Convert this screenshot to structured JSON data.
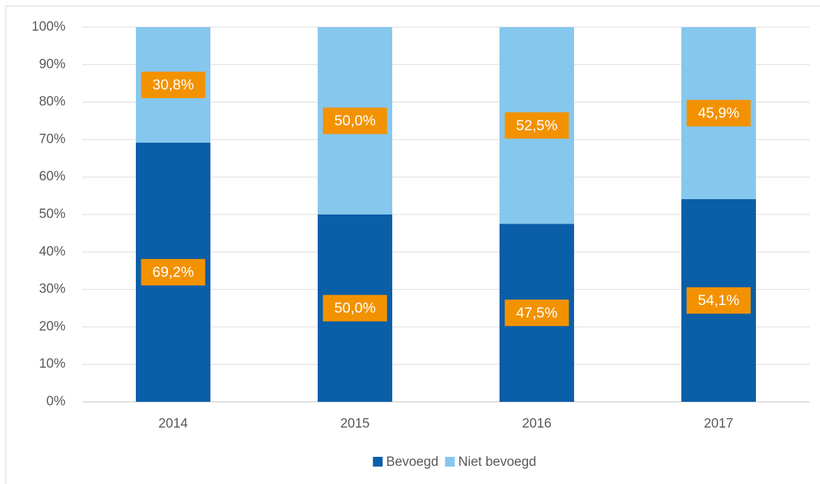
{
  "chart_data": {
    "type": "stacked_bar",
    "categories": [
      "2014",
      "2015",
      "2016",
      "2017"
    ],
    "series": [
      {
        "name": "Bevoegd",
        "color": "#0b5ea8",
        "values": [
          69.2,
          50.0,
          47.5,
          54.1
        ],
        "value_labels": [
          "69,2%",
          "50,0%",
          "47,5%",
          "54,1%"
        ]
      },
      {
        "name": "Niet bevoegd",
        "color": "#86c7ee",
        "values": [
          30.8,
          50.0,
          52.5,
          45.9
        ],
        "value_labels": [
          "30,8%",
          "50,0%",
          "52,5%",
          "45,9%"
        ]
      }
    ],
    "label_color": "#f39200",
    "ylim": [
      0,
      100
    ],
    "yticks": [
      {
        "value": 0,
        "label": "0%"
      },
      {
        "value": 10,
        "label": "10%"
      },
      {
        "value": 20,
        "label": "20%"
      },
      {
        "value": 30,
        "label": "30%"
      },
      {
        "value": 40,
        "label": "40%"
      },
      {
        "value": 50,
        "label": "50%"
      },
      {
        "value": 60,
        "label": "60%"
      },
      {
        "value": 70,
        "label": "70%"
      },
      {
        "value": 80,
        "label": "80%"
      },
      {
        "value": 90,
        "label": "90%"
      },
      {
        "value": 100,
        "label": "100%"
      }
    ],
    "grid": true,
    "legend": "bottom"
  }
}
